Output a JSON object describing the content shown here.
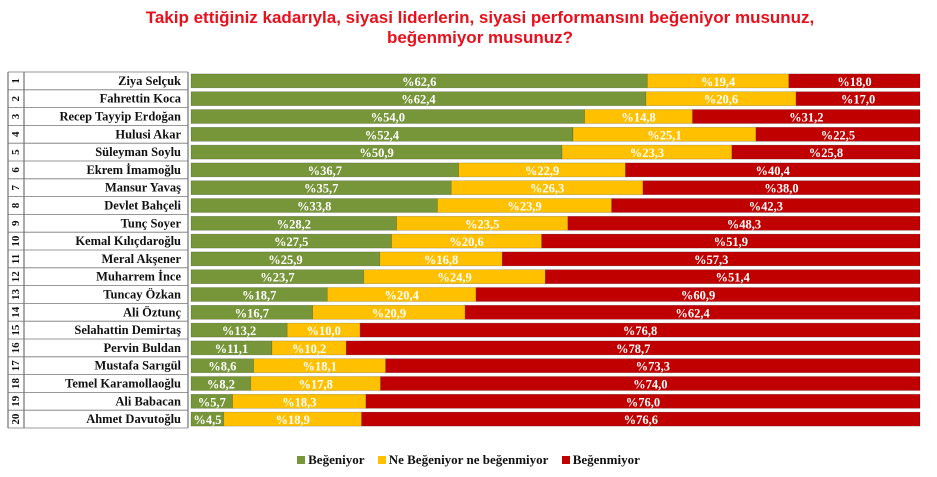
{
  "chart_data": {
    "type": "bar",
    "orientation": "horizontal",
    "stacked": true,
    "title": "Takip ettiğiniz kadarıyla, siyasi liderlerin, siyasi performansını beğeniyor musunuz, beğenmiyor musunuz?",
    "value_prefix": "%",
    "xlim": [
      0,
      100
    ],
    "colors": {
      "Beğeniyor": "#77963a",
      "Ne Beğeniyor ne beğenmiyor": "#ffc000",
      "Beğenmiyor": "#c00000"
    },
    "categories": [
      {
        "rank": "1",
        "name": "Ziya Selçuk"
      },
      {
        "rank": "2",
        "name": "Fahrettin Koca"
      },
      {
        "rank": "3",
        "name": "Recep Tayyip Erdoğan"
      },
      {
        "rank": "4",
        "name": "Hulusi Akar"
      },
      {
        "rank": "5",
        "name": "Süleyman Soylu"
      },
      {
        "rank": "6",
        "name": "Ekrem İmamoğlu"
      },
      {
        "rank": "7",
        "name": "Mansur Yavaş"
      },
      {
        "rank": "8",
        "name": "Devlet Bahçeli"
      },
      {
        "rank": "9",
        "name": "Tunç Soyer"
      },
      {
        "rank": "10",
        "name": "Kemal Kılıçdaroğlu"
      },
      {
        "rank": "11",
        "name": "Meral Akşener"
      },
      {
        "rank": "12",
        "name": "Muharrem İnce"
      },
      {
        "rank": "13",
        "name": "Tuncay Özkan"
      },
      {
        "rank": "14",
        "name": "Ali Öztunç"
      },
      {
        "rank": "15",
        "name": "Selahattin Demirtaş"
      },
      {
        "rank": "16",
        "name": "Pervin Buldan"
      },
      {
        "rank": "17",
        "name": "Mustafa Sarıgül"
      },
      {
        "rank": "18",
        "name": "Temel Karamollaoğlu"
      },
      {
        "rank": "19",
        "name": "Ali Babacan"
      },
      {
        "rank": "20",
        "name": "Ahmet Davutoğlu"
      }
    ],
    "series": [
      {
        "name": "Beğeniyor",
        "values": [
          62.6,
          62.4,
          54.0,
          52.4,
          50.9,
          36.7,
          35.7,
          33.8,
          28.2,
          27.5,
          25.9,
          23.7,
          18.7,
          16.7,
          13.2,
          11.1,
          8.6,
          8.2,
          5.7,
          4.5
        ]
      },
      {
        "name": "Ne Beğeniyor ne beğenmiyor",
        "values": [
          19.4,
          20.6,
          14.8,
          25.1,
          23.3,
          22.9,
          26.3,
          23.9,
          23.5,
          20.6,
          16.8,
          24.9,
          20.4,
          20.9,
          10.0,
          10.2,
          18.1,
          17.8,
          18.3,
          18.9
        ]
      },
      {
        "name": "Beğenmiyor",
        "values": [
          18.0,
          17.0,
          31.2,
          22.5,
          25.8,
          40.4,
          38.0,
          42.3,
          48.3,
          51.9,
          57.3,
          51.4,
          60.9,
          62.4,
          76.8,
          78.7,
          73.3,
          74.0,
          76.0,
          76.6
        ]
      }
    ],
    "labels": [
      [
        "62,6",
        "19,4",
        "18,0"
      ],
      [
        "62,4",
        "20,6",
        "17,0"
      ],
      [
        "54,0",
        "14,8",
        "31,2"
      ],
      [
        "52,4",
        "25,1",
        "22,5"
      ],
      [
        "50,9",
        "23,3",
        "25,8"
      ],
      [
        "36,7",
        "22,9",
        "40,4"
      ],
      [
        "35,7",
        "26,3",
        "38,0"
      ],
      [
        "33,8",
        "23,9",
        "42,3"
      ],
      [
        "28,2",
        "23,5",
        "48,3"
      ],
      [
        "27,5",
        "20,6",
        "51,9"
      ],
      [
        "25,9",
        "16,8",
        "57,3"
      ],
      [
        "23,7",
        "24,9",
        "51,4"
      ],
      [
        "18,7",
        "20,4",
        "60,9"
      ],
      [
        "16,7",
        "20,9",
        "62,4"
      ],
      [
        "13,2",
        "10,0",
        "76,8"
      ],
      [
        "11,1",
        "10,2",
        "78,7"
      ],
      [
        "8,6",
        "18,1",
        "73,3"
      ],
      [
        "8,2",
        "17,8",
        "74,0"
      ],
      [
        "5,7",
        "18,3",
        "76,0"
      ],
      [
        "4,5",
        "18,9",
        "76,6"
      ]
    ],
    "legend": [
      "Beğeniyor",
      "Ne Beğeniyor ne beğenmiyor",
      "Beğenmiyor"
    ],
    "legend_position": "bottom"
  }
}
